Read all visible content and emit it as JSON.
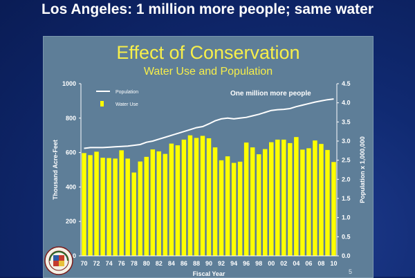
{
  "slide": {
    "title": "Los Angeles: 1 million more people; same water",
    "page_number": "5"
  },
  "seal": {
    "icon": "los-angeles-city-seal"
  },
  "chart_data": {
    "type": "bar",
    "title": "Effect of Conservation",
    "subtitle": "Water Use and Population",
    "xlabel": "Fiscal Year",
    "ylabel": "Thousand Acre-Feet",
    "y2label": "Population x 1,000,000",
    "annotation": "One million more people",
    "ylim": [
      0,
      1000
    ],
    "y2lim": [
      0,
      4.5
    ],
    "yticks": [
      0,
      200,
      400,
      600,
      800,
      1000
    ],
    "yticklabels": [
      "0",
      "200",
      "400",
      "600",
      "800",
      "1000"
    ],
    "y2ticks": [
      0,
      0.5,
      1.0,
      1.5,
      2.0,
      2.5,
      3.0,
      3.5,
      4.0,
      4.5
    ],
    "y2ticklabels": [
      "0.0",
      "0.5",
      "1.0",
      "1.5",
      "2.0",
      "2.5",
      "3.0",
      "3.5",
      "4.0",
      "4.5"
    ],
    "grid": false,
    "legend_position": "top-left",
    "colors": {
      "bars": "#ffff00",
      "line": "#ffffff",
      "text": "#ffffff",
      "title": "#f7ef4a"
    },
    "categories": [
      "70",
      "71",
      "72",
      "73",
      "74",
      "75",
      "76",
      "77",
      "78",
      "79",
      "80",
      "81",
      "82",
      "83",
      "84",
      "85",
      "86",
      "87",
      "88",
      "89",
      "90",
      "91",
      "92",
      "93",
      "94",
      "95",
      "96",
      "97",
      "98",
      "99",
      "00",
      "01",
      "02",
      "03",
      "04",
      "05",
      "06",
      "07",
      "08",
      "09",
      "10"
    ],
    "xticklabels": [
      "70",
      "",
      "72",
      "",
      "74",
      "",
      "76",
      "",
      "78",
      "",
      "80",
      "",
      "82",
      "",
      "84",
      "",
      "86",
      "",
      "88",
      "",
      "90",
      "",
      "92",
      "",
      "94",
      "",
      "96",
      "",
      "98",
      "",
      "00",
      "",
      "02",
      "",
      "04",
      "",
      "06",
      "",
      "08",
      "",
      "10"
    ],
    "series": [
      {
        "name": "Water Use",
        "kind": "bar",
        "axis": "left",
        "values": [
          597,
          585,
          605,
          570,
          568,
          565,
          613,
          565,
          484,
          548,
          575,
          618,
          607,
          592,
          652,
          642,
          675,
          700,
          685,
          697,
          683,
          630,
          555,
          578,
          540,
          547,
          658,
          630,
          590,
          620,
          660,
          675,
          675,
          655,
          690,
          617,
          625,
          670,
          650,
          615,
          545
        ]
      },
      {
        "name": "Population",
        "kind": "line",
        "axis": "right",
        "values": [
          2.81,
          2.83,
          2.83,
          2.83,
          2.84,
          2.85,
          2.86,
          2.87,
          2.89,
          2.91,
          2.97,
          3.0,
          3.05,
          3.1,
          3.15,
          3.2,
          3.25,
          3.3,
          3.35,
          3.38,
          3.45,
          3.53,
          3.58,
          3.6,
          3.58,
          3.6,
          3.62,
          3.66,
          3.7,
          3.75,
          3.8,
          3.82,
          3.83,
          3.85,
          3.9,
          3.94,
          3.98,
          4.02,
          4.05,
          4.08,
          4.1
        ]
      }
    ]
  }
}
